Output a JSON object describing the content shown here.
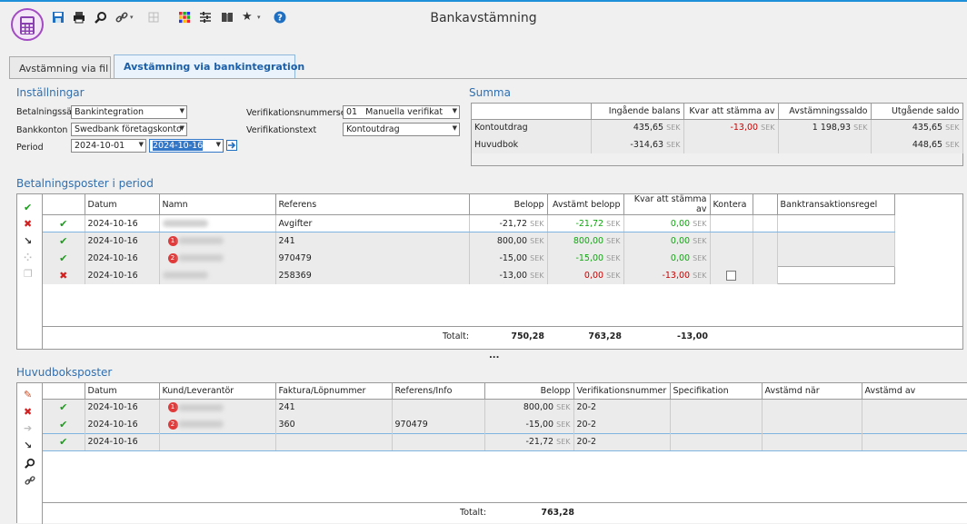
{
  "window": {
    "title": "Bankavstämning"
  },
  "tabs": [
    {
      "label": "Avstämning via fil"
    },
    {
      "label": "Avstämning via bankintegration"
    }
  ],
  "installningar": {
    "heading": "Inställningar",
    "betalningssatt_label": "Betalningssätt",
    "betalningssatt_value": "Bankintegration",
    "bankkonton_label": "Bankkonton",
    "bankkonton_value": "Swedbank företagskonto",
    "period_label": "Period",
    "period_from": "2024-10-01",
    "period_to": "2024-10-16",
    "verserier_label": "Verifikationsnummerserier",
    "verserier_num": "01",
    "verserier_value": "Manuella verifikat",
    "vertext_label": "Verifikationstext",
    "vertext_value": "Kontoutdrag"
  },
  "summa": {
    "heading": "Summa",
    "headers": [
      "Ingående balans",
      "Kvar att stämma av",
      "Avstämningssaldo",
      "Utgående saldo"
    ],
    "rows": [
      {
        "label": "Kontoutdrag",
        "ingaende": "435,65",
        "kvar": "-13,00",
        "avst": "1 198,93",
        "utg": "435,65"
      },
      {
        "label": "Huvudbok",
        "ingaende": "-314,63",
        "kvar": "",
        "avst": "",
        "utg": "448,65"
      }
    ],
    "currency": "SEK"
  },
  "betalningsposter": {
    "heading": "Betalningsposter i period",
    "headers": [
      "Datum",
      "Namn",
      "Referens",
      "Belopp",
      "Avstämt belopp",
      "Kvar att stämma av",
      "Kontera",
      "",
      "Banktransaktionsregel"
    ],
    "rows": [
      {
        "status": "check",
        "datum": "2024-10-16",
        "badge": "",
        "referens": "Avgifter",
        "belopp": "-21,72",
        "avstamt": "-21,72",
        "kvar": "0,00"
      },
      {
        "status": "check",
        "datum": "2024-10-16",
        "badge": "1",
        "referens": "241",
        "belopp": "800,00",
        "avstamt": "800,00",
        "kvar": "0,00"
      },
      {
        "status": "check",
        "datum": "2024-10-16",
        "badge": "2",
        "referens": "970479",
        "belopp": "-15,00",
        "avstamt": "-15,00",
        "kvar": "0,00"
      },
      {
        "status": "x",
        "datum": "2024-10-16",
        "badge": "",
        "referens": "258369",
        "belopp": "-13,00",
        "avstamt": "0,00",
        "kvar": "-13,00"
      }
    ],
    "totals": {
      "label": "Totalt:",
      "belopp": "750,28",
      "avstamt": "763,28",
      "kvar": "-13,00"
    }
  },
  "splitter": "...",
  "huvudboksposter": {
    "heading": "Huvudboksposter",
    "headers": [
      "Datum",
      "Kund/Leverantör",
      "Faktura/Löpnummer",
      "Referens/Info",
      "Belopp",
      "Verifikationsnummer",
      "Specifikation",
      "Avstämd när",
      "Avstämd av"
    ],
    "rows": [
      {
        "datum": "2024-10-16",
        "badge": "1",
        "faktura": "241",
        "ref": "",
        "belopp": "800,00",
        "ver": "20-2"
      },
      {
        "datum": "2024-10-16",
        "badge": "2",
        "faktura": "360",
        "ref": "970479",
        "belopp": "-15,00",
        "ver": "20-2"
      },
      {
        "datum": "2024-10-16",
        "badge": "",
        "faktura": "",
        "ref": "",
        "belopp": "-21,72",
        "ver": "20-2"
      }
    ],
    "totals": {
      "label": "Totalt:",
      "belopp": "763,28"
    }
  }
}
